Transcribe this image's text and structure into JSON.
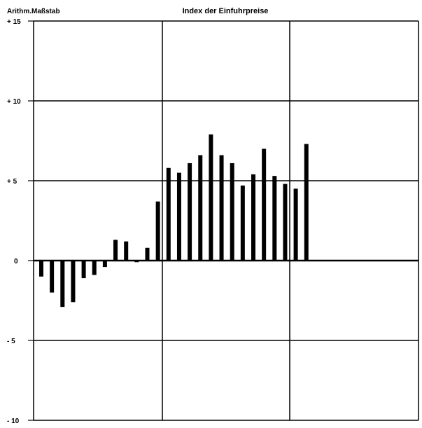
{
  "chart_data": {
    "type": "bar",
    "title": "Index der Einfuhrpreise",
    "scale_label": "Arithm.Maßstab",
    "ylim": [
      -10,
      15
    ],
    "yticks": [
      {
        "value": 15,
        "label": "+ 15"
      },
      {
        "value": 10,
        "label": "+ 10"
      },
      {
        "value": 5,
        "label": "+ 5"
      },
      {
        "value": 0,
        "label": "0"
      },
      {
        "value": -5,
        "label": "- 5"
      },
      {
        "value": -10,
        "label": "- 10"
      }
    ],
    "grid": true,
    "bar_color": "#000000",
    "values": [
      -1.0,
      -2.0,
      -2.9,
      -2.6,
      -1.1,
      -0.9,
      -0.4,
      1.3,
      1.2,
      -0.1,
      0.8,
      3.7,
      5.8,
      5.5,
      6.1,
      6.6,
      7.9,
      6.6,
      6.1,
      4.7,
      5.4,
      7.0,
      5.3,
      4.8,
      4.5,
      7.3
    ]
  }
}
